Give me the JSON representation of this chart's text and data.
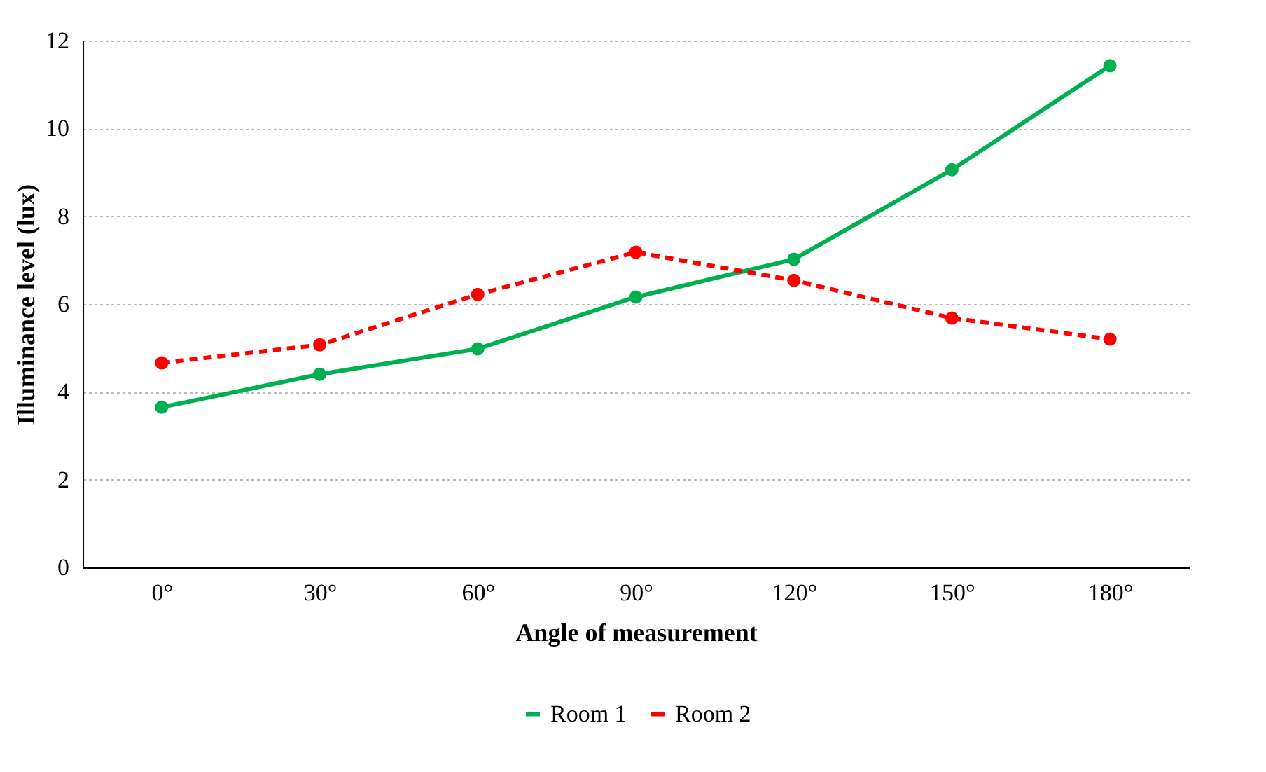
{
  "chart_data": {
    "type": "line",
    "xlabel": "Angle of measurement",
    "ylabel": "Illuminance level (lux)",
    "categories": [
      "0°",
      "30°",
      "60°",
      "90°",
      "120°",
      "150°",
      "180°"
    ],
    "series": [
      {
        "name": "Room 1",
        "color": "#00b050",
        "line_style": "solid",
        "values": [
          3.65,
          4.4,
          4.98,
          6.16,
          7.02,
          9.06,
          11.43
        ]
      },
      {
        "name": "Room 2",
        "color": "#ff0000",
        "line_style": "dashed",
        "values": [
          4.66,
          5.07,
          6.22,
          7.18,
          6.54,
          5.68,
          5.2
        ]
      }
    ],
    "ylim": [
      0,
      12
    ],
    "yticks": [
      0,
      2,
      4,
      6,
      8,
      10,
      12
    ],
    "grid": "y",
    "legend": "bottom",
    "marker": "circle"
  }
}
